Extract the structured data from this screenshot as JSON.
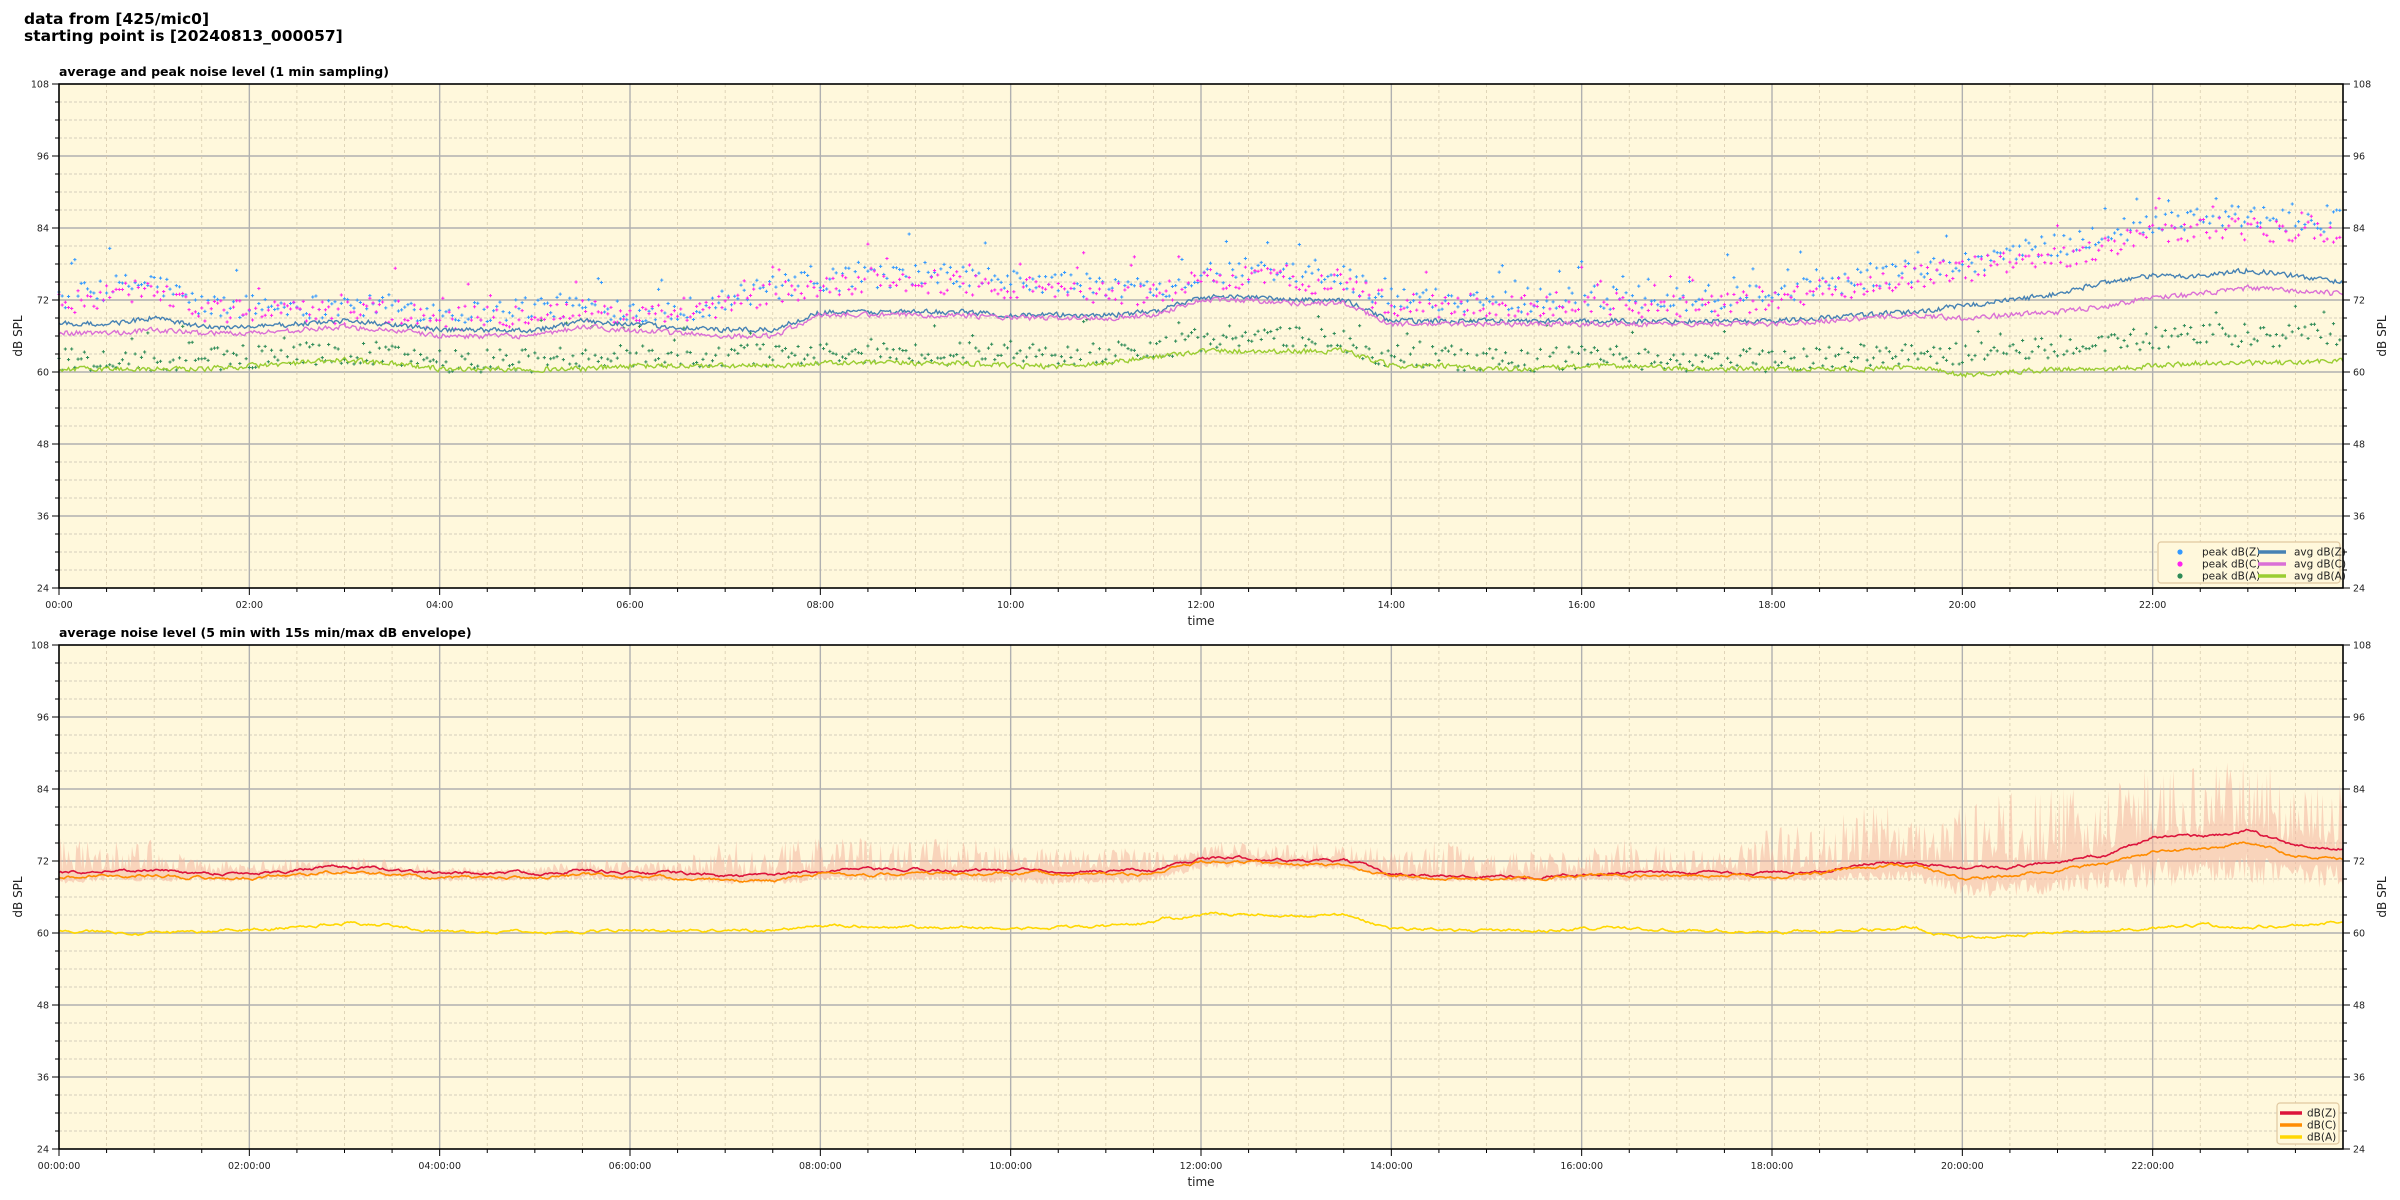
{
  "header": {
    "line1": "data from [425/mic0]",
    "line2": "starting point is [20240813_000057]"
  },
  "chart_data": [
    {
      "type": "line",
      "title": "average and peak noise level (1 min sampling)",
      "xlabel": "time",
      "ylabel": "dB SPL",
      "xlim_hours": [
        0,
        24
      ],
      "ylim": [
        24,
        108
      ],
      "yticks": [
        "24",
        "36",
        "48",
        "60",
        "72",
        "84",
        "96",
        "108"
      ],
      "xticks": [
        "00:00",
        "02:00",
        "04:00",
        "06:00",
        "08:00",
        "10:00",
        "12:00",
        "14:00",
        "16:00",
        "18:00",
        "20:00",
        "22:00"
      ],
      "grid": true,
      "background": "#fff8dc",
      "legend_position": "lower-right",
      "x_hours": [
        0,
        0.5,
        1,
        1.5,
        2,
        2.5,
        3,
        3.5,
        4,
        4.5,
        5,
        5.5,
        6,
        6.5,
        7,
        7.5,
        8,
        8.5,
        9,
        9.5,
        10,
        10.5,
        11,
        11.5,
        12,
        12.5,
        13,
        13.5,
        14,
        14.5,
        15,
        15.5,
        16,
        16.5,
        17,
        17.5,
        18,
        18.5,
        19,
        19.5,
        20,
        20.5,
        21,
        21.5,
        22,
        22.5,
        23,
        23.5,
        24
      ],
      "series": [
        {
          "name": "peak dB(Z)",
          "kind": "scatter",
          "color": "#3399ff",
          "values": [
            72,
            74,
            75,
            71,
            71,
            71,
            71,
            71,
            70,
            70,
            71,
            71,
            70.5,
            70,
            72,
            74,
            75,
            76,
            76,
            76,
            75,
            75,
            74,
            74,
            76,
            77,
            76,
            76,
            72,
            72,
            72,
            72,
            73,
            72,
            72,
            72,
            73,
            74,
            76,
            77,
            78,
            80,
            81,
            83,
            85,
            86,
            86,
            85,
            85
          ]
        },
        {
          "name": "peak dB(C)",
          "kind": "scatter",
          "color": "#ff22ee",
          "values": [
            71,
            73,
            74,
            70,
            70,
            70,
            70,
            70,
            69,
            69,
            70,
            70,
            69.5,
            69,
            71,
            73,
            74,
            75,
            75,
            75,
            74,
            74,
            73,
            73,
            75,
            76,
            75,
            75,
            71,
            71,
            71,
            71,
            72,
            71,
            71,
            71,
            72,
            73,
            75,
            76,
            77,
            78,
            79,
            81,
            83,
            84,
            84,
            83,
            83
          ]
        },
        {
          "name": "peak dB(A)",
          "kind": "scatter",
          "color": "#2e8b57",
          "values": [
            62,
            62,
            62,
            62,
            62.5,
            63,
            63,
            63,
            62,
            62,
            62,
            62,
            62.5,
            62.5,
            62.5,
            63,
            63,
            63,
            63,
            63,
            63,
            63,
            63,
            64,
            65.5,
            66,
            65.5,
            65,
            62.5,
            62.5,
            62,
            62,
            62.5,
            62.5,
            62,
            62,
            62,
            62.5,
            63,
            63,
            63,
            63,
            64,
            65,
            65.5,
            66,
            66,
            66,
            66
          ]
        },
        {
          "name": "avg dB(Z)",
          "kind": "line",
          "color": "#4682b4",
          "values": [
            68,
            68,
            69,
            67.5,
            67.5,
            68,
            68.5,
            68,
            67,
            67,
            67,
            68.5,
            68,
            67.5,
            67,
            67,
            70,
            70,
            70,
            70,
            69.5,
            69.5,
            69.5,
            70,
            72.5,
            72.5,
            72,
            72,
            68.5,
            68.5,
            68.5,
            68.5,
            68.5,
            68.5,
            68.5,
            68.5,
            68.5,
            69,
            69.5,
            70,
            71,
            72,
            73,
            75,
            76,
            76,
            77,
            76,
            75
          ]
        },
        {
          "name": "avg dB(C)",
          "kind": "line",
          "color": "#da70d6",
          "values": [
            66.5,
            66.5,
            67,
            66.5,
            66.5,
            67,
            67.5,
            67,
            66,
            66,
            66,
            67.5,
            67,
            66.5,
            66,
            66,
            69.5,
            69.5,
            69.5,
            69.5,
            69,
            69,
            69,
            69.5,
            72,
            72,
            71.5,
            71.5,
            68,
            68,
            68,
            68,
            68,
            68,
            68,
            68,
            68,
            68.5,
            69,
            69.5,
            69,
            69.5,
            70,
            71,
            72.5,
            73,
            74,
            73.5,
            73
          ]
        },
        {
          "name": "avg dB(A)",
          "kind": "line",
          "color": "#9acd32",
          "values": [
            60.5,
            60.5,
            60.5,
            60.5,
            61,
            61.5,
            62,
            61.5,
            60.5,
            60.5,
            60.5,
            60.5,
            61,
            61,
            61,
            61,
            61.5,
            61.5,
            61.5,
            61.5,
            61,
            61,
            61.5,
            62.5,
            63.5,
            63.5,
            63.5,
            63.5,
            61,
            61,
            60.5,
            60.5,
            61,
            61,
            60.5,
            60.5,
            60.5,
            60.5,
            60.5,
            61,
            59.5,
            60,
            60.5,
            60.5,
            61,
            61.5,
            61.5,
            61.5,
            62
          ]
        }
      ]
    },
    {
      "type": "line",
      "title": "average noise level (5 min with 15s min/max dB envelope)",
      "xlabel": "time",
      "ylabel": "dB SPL",
      "xlim_hours": [
        0,
        24
      ],
      "ylim": [
        24,
        108
      ],
      "yticks": [
        "24",
        "36",
        "48",
        "60",
        "72",
        "84",
        "96",
        "108"
      ],
      "xticks": [
        "00:00:00",
        "02:00:00",
        "04:00:00",
        "06:00:00",
        "08:00:00",
        "10:00:00",
        "12:00:00",
        "14:00:00",
        "16:00:00",
        "18:00:00",
        "20:00:00",
        "22:00:00"
      ],
      "grid": true,
      "background": "#fff8dc",
      "legend_position": "lower-right",
      "envelope_color": "#f4b6a0",
      "x_hours": [
        0,
        0.5,
        1,
        1.5,
        2,
        2.5,
        3,
        3.5,
        4,
        4.5,
        5,
        5.5,
        6,
        6.5,
        7,
        7.5,
        8,
        8.5,
        9,
        9.5,
        10,
        10.5,
        11,
        11.5,
        12,
        12.5,
        13,
        13.5,
        14,
        14.5,
        15,
        15.5,
        16,
        16.5,
        17,
        17.5,
        18,
        18.5,
        19,
        19.5,
        20,
        20.5,
        21,
        21.5,
        22,
        22.5,
        23,
        23.5,
        24
      ],
      "envelope_max": [
        76,
        75,
        76,
        72,
        72,
        72.5,
        73,
        72.5,
        71,
        71,
        71,
        72.5,
        72,
        72,
        75.5,
        75.5,
        76,
        76,
        76,
        76,
        74.5,
        74.5,
        74.5,
        74,
        75,
        75.5,
        75,
        75,
        74,
        76,
        73,
        74,
        74,
        76,
        74,
        74,
        78,
        78.5,
        81.5,
        82,
        81,
        83.5,
        84,
        85,
        88,
        88,
        89,
        87,
        86
      ],
      "envelope_min": [
        68,
        68.5,
        68.5,
        68.5,
        68.5,
        69,
        69.5,
        69,
        68.5,
        68.5,
        68.5,
        69,
        68.5,
        68.5,
        68,
        68,
        68.5,
        68.5,
        68.5,
        68.5,
        68,
        68,
        68,
        68.5,
        70.5,
        71,
        70.5,
        70.5,
        68.5,
        68.5,
        68.5,
        68.5,
        68.5,
        68.5,
        68.5,
        68.5,
        68.5,
        68.5,
        68.5,
        68.5,
        66,
        66,
        66.5,
        67,
        67.5,
        67.5,
        68,
        67.5,
        67.5
      ],
      "series": [
        {
          "name": "dB(Z)",
          "kind": "line",
          "color": "#dc143c",
          "values": [
            70,
            70.5,
            70.5,
            70,
            70,
            70.5,
            71,
            70.5,
            70,
            70,
            70,
            70.5,
            70,
            70,
            69.5,
            69.5,
            70.5,
            70.5,
            70.5,
            70.5,
            70.5,
            70.5,
            70.5,
            70.5,
            72.5,
            72.5,
            72,
            72,
            70,
            69.5,
            69.5,
            69.5,
            70,
            70,
            70,
            70,
            70,
            70.5,
            71.5,
            72,
            71,
            71,
            72,
            73,
            76,
            76,
            77,
            74.5,
            74
          ]
        },
        {
          "name": "dB(C)",
          "kind": "line",
          "color": "#ff8c00",
          "values": [
            69.3,
            69.7,
            69.7,
            69.2,
            69.2,
            69.7,
            70.2,
            69.7,
            69.2,
            69.2,
            69.2,
            69.7,
            69.2,
            69.2,
            68.7,
            68.7,
            69.8,
            69.8,
            69.8,
            69.8,
            69.8,
            69.8,
            69.8,
            69.8,
            71.8,
            71.8,
            71.3,
            71.3,
            69.5,
            69,
            69,
            69,
            69.5,
            69.5,
            69.5,
            69.5,
            69.5,
            70,
            71,
            71.3,
            69,
            69.5,
            70.5,
            71.5,
            73.5,
            74,
            75,
            73,
            72.5
          ]
        },
        {
          "name": "dB(A)",
          "kind": "line",
          "color": "#ffd700",
          "values": [
            60.3,
            60.2,
            60.2,
            60.3,
            60.5,
            61,
            61.7,
            61.2,
            60.2,
            60.2,
            60.2,
            60.2,
            60.5,
            60.5,
            60.5,
            60.5,
            61.2,
            61.2,
            61,
            61,
            60.8,
            60.8,
            61,
            62,
            63.2,
            63.2,
            63,
            63,
            60.8,
            60.8,
            60.3,
            60.3,
            60.8,
            60.8,
            60.3,
            60.3,
            60.3,
            60.3,
            60.5,
            61,
            59,
            59.7,
            60.2,
            60.2,
            60.8,
            61.2,
            61.2,
            61.2,
            62
          ]
        }
      ]
    }
  ]
}
